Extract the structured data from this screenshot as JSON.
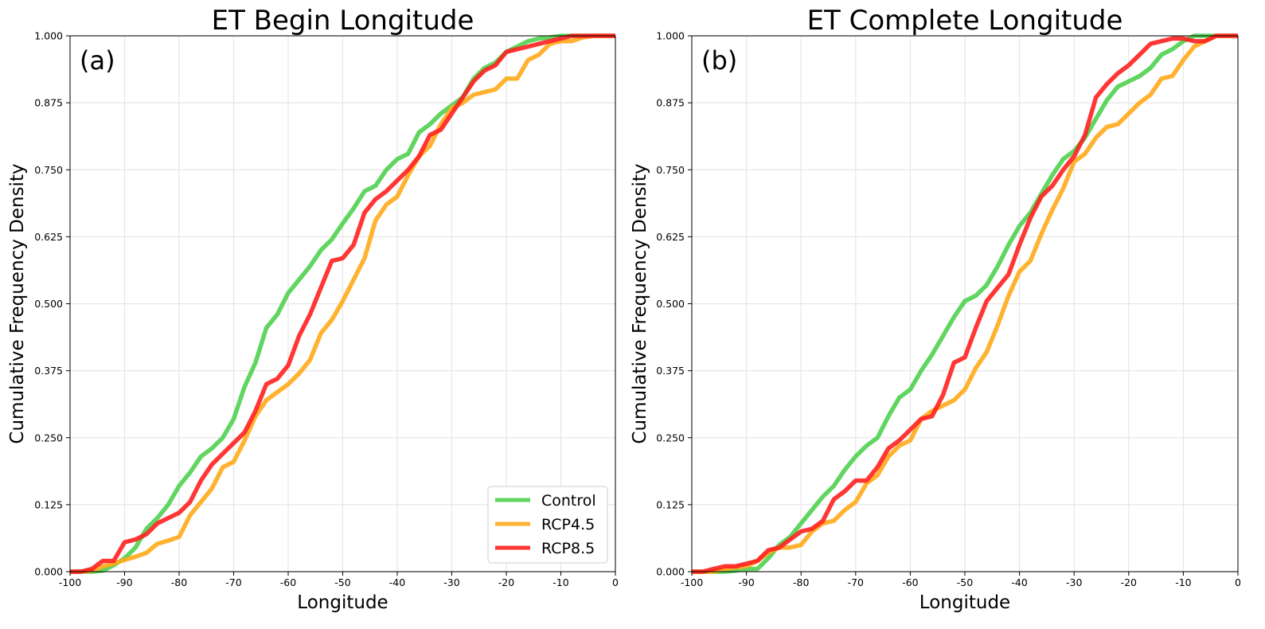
{
  "chart_data": [
    {
      "type": "line",
      "title": "ET Begin Longitude",
      "panel_label": "(a)",
      "xlabel": "Longitude",
      "ylabel": "Cumulative Frequency Density",
      "xlim": [
        -100,
        0
      ],
      "ylim": [
        0,
        1
      ],
      "x_ticks": [
        "-100",
        "-90",
        "-80",
        "-70",
        "-60",
        "-50",
        "-40",
        "-30",
        "-20",
        "-10",
        "0"
      ],
      "y_ticks": [
        "0.000",
        "0.125",
        "0.250",
        "0.375",
        "0.500",
        "0.625",
        "0.750",
        "0.875",
        "1.000"
      ],
      "grid": true,
      "legend": "lower-right",
      "series": [
        {
          "name": "Control",
          "color": "#4fd04f",
          "x": [
            -100,
            -98,
            -96,
            -94,
            -92,
            -90,
            -88,
            -86,
            -84,
            -82,
            -80,
            -78,
            -76,
            -74,
            -72,
            -70,
            -68,
            -66,
            -64,
            -62,
            -60,
            -58,
            -56,
            -54,
            -52,
            -50,
            -48,
            -46,
            -44,
            -42,
            -40,
            -38,
            -36,
            -34,
            -32,
            -30,
            -28,
            -26,
            -24,
            -22,
            -20,
            -18,
            -16,
            -14,
            -12,
            -10,
            -8,
            -6,
            -4,
            -2,
            0
          ],
          "y": [
            0,
            0,
            0,
            0.002,
            0.012,
            0.025,
            0.045,
            0.08,
            0.1,
            0.125,
            0.16,
            0.185,
            0.215,
            0.23,
            0.25,
            0.285,
            0.345,
            0.39,
            0.455,
            0.48,
            0.52,
            0.545,
            0.57,
            0.6,
            0.62,
            0.65,
            0.678,
            0.71,
            0.72,
            0.75,
            0.77,
            0.78,
            0.82,
            0.835,
            0.855,
            0.87,
            0.885,
            0.92,
            0.94,
            0.95,
            0.97,
            0.98,
            0.99,
            0.995,
            0.997,
            1,
            1,
            1,
            1,
            1,
            1
          ]
        },
        {
          "name": "RCP4.5",
          "color": "#ffaa1a",
          "x": [
            -100,
            -98,
            -96,
            -94,
            -92,
            -90,
            -88,
            -86,
            -84,
            -82,
            -80,
            -78,
            -76,
            -74,
            -72,
            -70,
            -68,
            -66,
            -64,
            -62,
            -60,
            -58,
            -56,
            -54,
            -52,
            -50,
            -48,
            -46,
            -44,
            -42,
            -40,
            -38,
            -36,
            -34,
            -32,
            -30,
            -28,
            -26,
            -24,
            -22,
            -20,
            -18,
            -16,
            -14,
            -12,
            -10,
            -8,
            -6,
            -4,
            -2,
            0
          ],
          "y": [
            0,
            0,
            0.002,
            0.01,
            0.015,
            0.022,
            0.028,
            0.035,
            0.052,
            0.058,
            0.065,
            0.105,
            0.13,
            0.155,
            0.195,
            0.205,
            0.245,
            0.29,
            0.32,
            0.335,
            0.35,
            0.37,
            0.395,
            0.445,
            0.47,
            0.505,
            0.545,
            0.585,
            0.655,
            0.685,
            0.7,
            0.74,
            0.775,
            0.795,
            0.835,
            0.865,
            0.875,
            0.89,
            0.895,
            0.9,
            0.92,
            0.92,
            0.955,
            0.965,
            0.985,
            0.99,
            0.99,
            0.997,
            1,
            1,
            1
          ]
        },
        {
          "name": "RCP8.5",
          "color": "#ff2020",
          "x": [
            -100,
            -98,
            -96,
            -94,
            -92,
            -90,
            -88,
            -86,
            -84,
            -82,
            -80,
            -78,
            -76,
            -74,
            -72,
            -70,
            -68,
            -66,
            -64,
            -62,
            -60,
            -58,
            -56,
            -54,
            -52,
            -50,
            -48,
            -46,
            -44,
            -42,
            -40,
            -38,
            -36,
            -34,
            -32,
            -30,
            -28,
            -26,
            -24,
            -22,
            -20,
            -18,
            -16,
            -14,
            -12,
            -10,
            -8,
            -6,
            -4,
            -2,
            0
          ],
          "y": [
            0,
            0,
            0.005,
            0.02,
            0.02,
            0.055,
            0.06,
            0.07,
            0.09,
            0.1,
            0.11,
            0.13,
            0.17,
            0.2,
            0.22,
            0.24,
            0.26,
            0.3,
            0.35,
            0.36,
            0.385,
            0.44,
            0.48,
            0.53,
            0.58,
            0.585,
            0.61,
            0.67,
            0.695,
            0.71,
            0.73,
            0.75,
            0.775,
            0.815,
            0.825,
            0.855,
            0.885,
            0.915,
            0.935,
            0.945,
            0.97,
            0.975,
            0.98,
            0.985,
            0.99,
            0.995,
            1,
            1,
            1,
            1,
            1
          ]
        }
      ]
    },
    {
      "type": "line",
      "title": "ET Complete Longitude",
      "panel_label": "(b)",
      "xlabel": "Longitude",
      "ylabel": "Cumulative Frequency Density",
      "xlim": [
        -100,
        0
      ],
      "ylim": [
        0,
        1
      ],
      "x_ticks": [
        "-100",
        "-90",
        "-80",
        "-70",
        "-60",
        "-50",
        "-40",
        "-30",
        "-20",
        "-10",
        "0"
      ],
      "y_ticks": [
        "0.000",
        "0.125",
        "0.250",
        "0.375",
        "0.500",
        "0.625",
        "0.750",
        "0.875",
        "1.000"
      ],
      "grid": true,
      "series": [
        {
          "name": "Control",
          "color": "#4fd04f",
          "x": [
            -100,
            -98,
            -96,
            -94,
            -92,
            -90,
            -88,
            -86,
            -84,
            -82,
            -80,
            -78,
            -76,
            -74,
            -72,
            -70,
            -68,
            -66,
            -64,
            -62,
            -60,
            -58,
            -56,
            -54,
            -52,
            -50,
            -48,
            -46,
            -44,
            -42,
            -40,
            -38,
            -36,
            -34,
            -32,
            -30,
            -28,
            -26,
            -24,
            -22,
            -20,
            -18,
            -16,
            -14,
            -12,
            -10,
            -8,
            -6,
            -4,
            -2,
            0
          ],
          "y": [
            0,
            0,
            0,
            0,
            0.002,
            0.005,
            0.005,
            0.025,
            0.05,
            0.065,
            0.09,
            0.115,
            0.14,
            0.16,
            0.19,
            0.215,
            0.235,
            0.25,
            0.29,
            0.325,
            0.34,
            0.375,
            0.405,
            0.44,
            0.475,
            0.505,
            0.515,
            0.535,
            0.57,
            0.61,
            0.645,
            0.67,
            0.705,
            0.74,
            0.77,
            0.785,
            0.81,
            0.845,
            0.88,
            0.905,
            0.915,
            0.925,
            0.94,
            0.965,
            0.975,
            0.99,
            1,
            1,
            1,
            1,
            1
          ]
        },
        {
          "name": "RCP4.5",
          "color": "#ffaa1a",
          "x": [
            -100,
            -98,
            -96,
            -94,
            -92,
            -90,
            -88,
            -86,
            -84,
            -82,
            -80,
            -78,
            -76,
            -74,
            -72,
            -70,
            -68,
            -66,
            -64,
            -62,
            -60,
            -58,
            -56,
            -54,
            -52,
            -50,
            -48,
            -46,
            -44,
            -42,
            -40,
            -38,
            -36,
            -34,
            -32,
            -30,
            -28,
            -26,
            -24,
            -22,
            -20,
            -18,
            -16,
            -14,
            -12,
            -10,
            -8,
            -6,
            -4,
            -2,
            0
          ],
          "y": [
            0,
            0,
            0,
            0.005,
            0.008,
            0.01,
            0.02,
            0.035,
            0.045,
            0.045,
            0.05,
            0.075,
            0.09,
            0.095,
            0.115,
            0.13,
            0.165,
            0.18,
            0.215,
            0.235,
            0.245,
            0.285,
            0.3,
            0.31,
            0.32,
            0.34,
            0.38,
            0.41,
            0.46,
            0.515,
            0.56,
            0.58,
            0.63,
            0.675,
            0.715,
            0.765,
            0.78,
            0.81,
            0.83,
            0.835,
            0.855,
            0.875,
            0.89,
            0.92,
            0.925,
            0.955,
            0.98,
            0.99,
            1,
            1,
            1
          ]
        },
        {
          "name": "RCP8.5",
          "color": "#ff2020",
          "x": [
            -100,
            -98,
            -96,
            -94,
            -92,
            -90,
            -88,
            -86,
            -84,
            -82,
            -80,
            -78,
            -76,
            -74,
            -72,
            -70,
            -68,
            -66,
            -64,
            -62,
            -60,
            -58,
            -56,
            -54,
            -52,
            -50,
            -48,
            -46,
            -44,
            -42,
            -40,
            -38,
            -36,
            -34,
            -32,
            -30,
            -28,
            -26,
            -24,
            -22,
            -20,
            -18,
            -16,
            -14,
            -12,
            -10,
            -8,
            -6,
            -4,
            -2,
            0
          ],
          "y": [
            0,
            0,
            0.005,
            0.01,
            0.01,
            0.015,
            0.02,
            0.04,
            0.045,
            0.06,
            0.075,
            0.08,
            0.095,
            0.135,
            0.15,
            0.17,
            0.17,
            0.195,
            0.23,
            0.245,
            0.265,
            0.285,
            0.29,
            0.33,
            0.39,
            0.4,
            0.455,
            0.505,
            0.53,
            0.555,
            0.61,
            0.66,
            0.7,
            0.72,
            0.75,
            0.775,
            0.815,
            0.885,
            0.91,
            0.93,
            0.945,
            0.965,
            0.985,
            0.99,
            0.995,
            0.995,
            0.99,
            0.99,
            1,
            1,
            1
          ]
        }
      ]
    }
  ]
}
